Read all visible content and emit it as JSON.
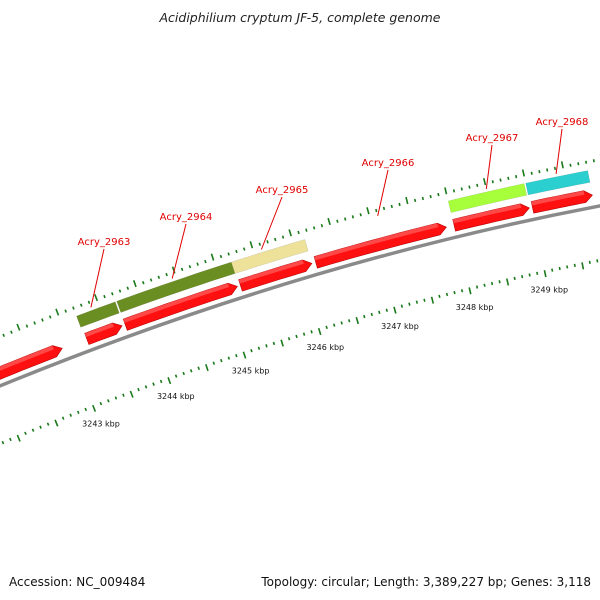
{
  "header": {
    "title": "Acidiphilium cryptum JF-5, complete genome"
  },
  "footer": {
    "accession": "Accession: NC_009484",
    "summary": "Topology: circular; Length: 3,389,227 bp; Genes: 3,118"
  },
  "colors": {
    "backbone": "#8a8a8a",
    "tick": "#1a7a1a",
    "gene_label": "#e00000",
    "cds": "#ff1010",
    "olive": "#6b8e23",
    "khaki": "#eee29a",
    "light_green": "#a6ff3a",
    "cyan": "#2ccfcf"
  },
  "scale_labels": [
    {
      "kbp": 3243,
      "text": "3243 kbp"
    },
    {
      "kbp": 3244,
      "text": "3244 kbp"
    },
    {
      "kbp": 3245,
      "text": "3245 kbp"
    },
    {
      "kbp": 3246,
      "text": "3246 kbp"
    },
    {
      "kbp": 3247,
      "text": "3247 kbp"
    },
    {
      "kbp": 3248,
      "text": "3248 kbp"
    },
    {
      "kbp": 3249,
      "text": "3249 kbp"
    }
  ],
  "gene_labels": [
    {
      "id": "Acry_2963",
      "text": "Acry_2963"
    },
    {
      "id": "Acry_2964",
      "text": "Acry_2964"
    },
    {
      "id": "Acry_2965",
      "text": "Acry_2965"
    },
    {
      "id": "Acry_2966",
      "text": "Acry_2966"
    },
    {
      "id": "Acry_2967",
      "text": "Acry_2967"
    },
    {
      "id": "Acry_2968",
      "text": "Acry_2968"
    }
  ],
  "features": [
    {
      "kind": "cds",
      "strand": "+",
      "start_kbp": 3242.05,
      "end_kbp": 3242.9
    },
    {
      "kind": "cds",
      "strand": "+",
      "start_kbp": 3243.22,
      "end_kbp": 3243.68
    },
    {
      "kind": "cds",
      "strand": "+",
      "start_kbp": 3243.72,
      "end_kbp": 3245.18
    },
    {
      "kind": "cds",
      "strand": "+",
      "start_kbp": 3245.22,
      "end_kbp": 3246.15
    },
    {
      "kind": "cds",
      "strand": "+",
      "start_kbp": 3246.2,
      "end_kbp": 3247.9
    },
    {
      "kind": "cds",
      "strand": "+",
      "start_kbp": 3248.0,
      "end_kbp": 3248.98
    },
    {
      "kind": "cds",
      "strand": "+",
      "start_kbp": 3249.02,
      "end_kbp": 3249.8
    },
    {
      "kind": "gene",
      "color": "olive",
      "start_kbp": 3243.2,
      "end_kbp": 3243.7
    },
    {
      "kind": "gene",
      "color": "olive",
      "start_kbp": 3243.72,
      "end_kbp": 3245.2
    },
    {
      "kind": "gene",
      "color": "khaki",
      "start_kbp": 3245.2,
      "end_kbp": 3246.15
    },
    {
      "kind": "gene",
      "color": "light_green",
      "start_kbp": 3248.0,
      "end_kbp": 3248.98
    },
    {
      "kind": "gene",
      "color": "cyan",
      "start_kbp": 3249.0,
      "end_kbp": 3249.8
    }
  ]
}
